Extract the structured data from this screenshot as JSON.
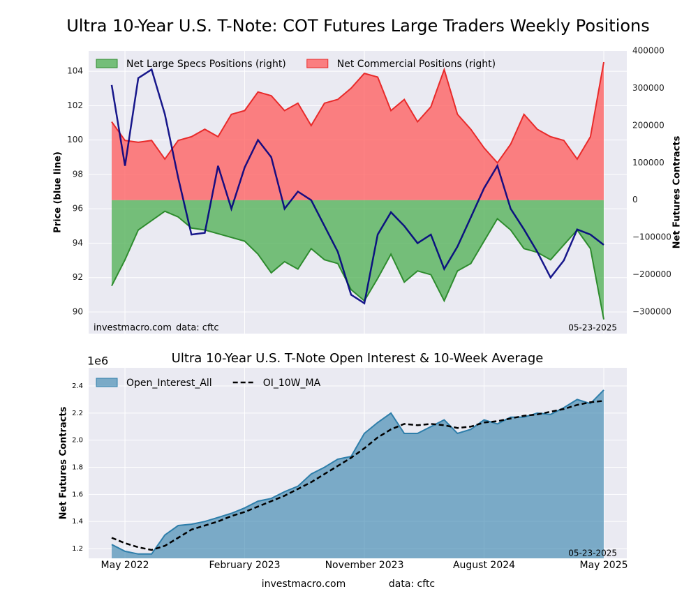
{
  "title": "Ultra 10-Year U.S. T-Note: COT Futures Large Traders Weekly Positions",
  "footer": {
    "site": "investmacro.com",
    "source": "data: cftc"
  },
  "chart_data": [
    {
      "type": "line",
      "ylabel": "Price (blue line)",
      "y2label": "Net Futures Contracts",
      "x": [
        "2022-04",
        "2022-05",
        "2022-06",
        "2022-07",
        "2022-08",
        "2022-09",
        "2022-10",
        "2022-11",
        "2022-12",
        "2023-01",
        "2023-02",
        "2023-03",
        "2023-04",
        "2023-05",
        "2023-06",
        "2023-07",
        "2023-08",
        "2023-09",
        "2023-10",
        "2023-11",
        "2023-12",
        "2024-01",
        "2024-02",
        "2024-03",
        "2024-04",
        "2024-05",
        "2024-06",
        "2024-07",
        "2024-08",
        "2024-09",
        "2024-10",
        "2024-11",
        "2024-12",
        "2025-01",
        "2025-02",
        "2025-03",
        "2025-04",
        "2025-05"
      ],
      "series": [
        {
          "color": "#000080",
          "axis": "y",
          "values": [
            103.2,
            98.5,
            103.6,
            104.1,
            101.5,
            97.8,
            94.5,
            94.6,
            98.5,
            96.0,
            98.4,
            100.0,
            99.0,
            96.0,
            97.0,
            96.5,
            95.0,
            93.5,
            91.0,
            90.5,
            94.5,
            95.8,
            95.0,
            94.0,
            94.5,
            92.5,
            93.8,
            95.5,
            97.2,
            98.5,
            96.0,
            94.8,
            93.5,
            92.0,
            93.0,
            94.8,
            94.5,
            93.9
          ]
        },
        {
          "name": "Net Large Specs Positions (right)",
          "color": "#4caf50",
          "edge": "#2e8b2e",
          "axis": "y2",
          "values": [
            -230000,
            -160000,
            -80000,
            -55000,
            -30000,
            -45000,
            -75000,
            -80000,
            -90000,
            -100000,
            -110000,
            -145000,
            -195000,
            -165000,
            -185000,
            -130000,
            -160000,
            -170000,
            -240000,
            -270000,
            -210000,
            -145000,
            -220000,
            -190000,
            -200000,
            -270000,
            -190000,
            -170000,
            -110000,
            -50000,
            -80000,
            -130000,
            -140000,
            -160000,
            -120000,
            -80000,
            -130000,
            -320000
          ]
        },
        {
          "name": "Net Commercial Positions (right)",
          "color": "#ff5a5a",
          "edge": "#e82a2a",
          "axis": "y2",
          "values": [
            210000,
            160000,
            155000,
            160000,
            110000,
            160000,
            170000,
            190000,
            170000,
            230000,
            240000,
            290000,
            280000,
            240000,
            260000,
            200000,
            260000,
            270000,
            300000,
            340000,
            330000,
            240000,
            270000,
            210000,
            250000,
            350000,
            230000,
            190000,
            140000,
            100000,
            150000,
            230000,
            190000,
            170000,
            160000,
            110000,
            170000,
            370000
          ]
        }
      ],
      "ylim": [
        88.74,
        105.18
      ],
      "yticks": [
        90,
        92,
        94,
        96,
        98,
        100,
        102,
        104
      ],
      "y2lim": [
        -358000,
        400000
      ],
      "y2ticks": [
        {
          "value": -300000,
          "label": "−300000"
        },
        {
          "value": -200000,
          "label": "−200000"
        },
        {
          "value": -100000,
          "label": "−100000"
        },
        0,
        100000,
        200000,
        300000,
        400000
      ],
      "grid": true,
      "legend": "top",
      "watermark": "investmacro.com",
      "source": "data: cftc",
      "date_label": "05-23-2025"
    },
    {
      "type": "area",
      "title": "Ultra 10-Year U.S. T-Note Open Interest & 10-Week Average",
      "ylabel": "Net Futures Contracts",
      "offset_label": "1e6",
      "series": [
        {
          "name": "Open_Interest_All",
          "color": "#2e7eaa",
          "values": [
            1.23,
            1.18,
            1.16,
            1.16,
            1.3,
            1.37,
            1.38,
            1.4,
            1.43,
            1.46,
            1.5,
            1.55,
            1.57,
            1.62,
            1.66,
            1.75,
            1.8,
            1.86,
            1.88,
            2.05,
            2.13,
            2.2,
            2.05,
            2.05,
            2.1,
            2.15,
            2.05,
            2.08,
            2.15,
            2.12,
            2.17,
            2.17,
            2.2,
            2.19,
            2.24,
            2.3,
            2.27,
            2.37
          ]
        },
        {
          "name": "OI_10W_MA",
          "color": "#000000",
          "dashed": true,
          "values": [
            1.28,
            1.24,
            1.21,
            1.19,
            1.22,
            1.28,
            1.34,
            1.37,
            1.4,
            1.44,
            1.47,
            1.51,
            1.55,
            1.59,
            1.64,
            1.69,
            1.75,
            1.81,
            1.87,
            1.94,
            2.02,
            2.08,
            2.12,
            2.11,
            2.12,
            2.11,
            2.09,
            2.1,
            2.13,
            2.14,
            2.16,
            2.18,
            2.19,
            2.21,
            2.23,
            2.26,
            2.28,
            2.29
          ]
        }
      ],
      "xticks": [
        {
          "value": "2022-05",
          "label": "May 2022"
        },
        {
          "value": "2023-02",
          "label": "February 2023"
        },
        {
          "value": "2023-11",
          "label": "November 2023"
        },
        {
          "value": "2024-08",
          "label": "August 2024"
        },
        {
          "value": "2025-05",
          "label": "May 2025"
        }
      ],
      "ylim": [
        1.128,
        2.534
      ],
      "yticks": [
        1.2,
        1.4,
        1.6,
        1.8,
        {
          "value": 2,
          "label": "2.0"
        },
        2.2,
        2.4
      ],
      "grid": true,
      "legend": "top",
      "date_label": "05-23-2025"
    }
  ]
}
